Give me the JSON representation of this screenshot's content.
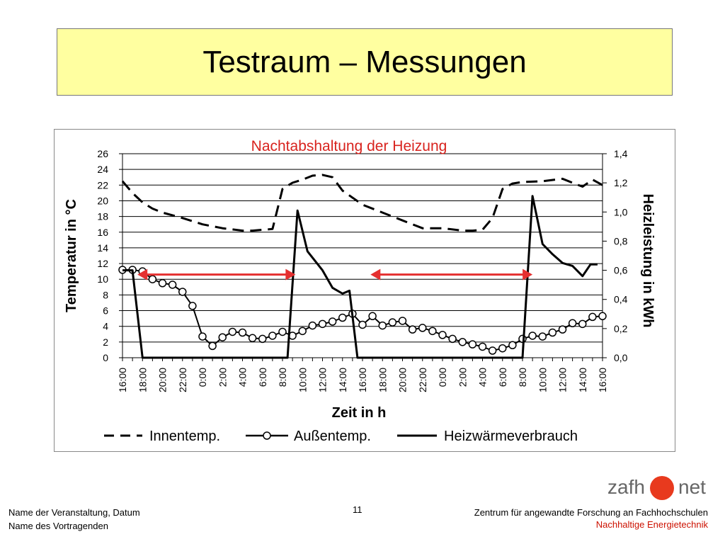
{
  "slide": {
    "title": "Testraum – Messungen",
    "page_number": "11",
    "footer_left_1": "Name der Veranstaltung, Datum",
    "footer_left_2": "Name des Vortragenden",
    "footer_right_1": "Zentrum für angewandte Forschung an Fachhochschulen",
    "footer_right_2": "Nachhaltige Energietechnik",
    "logo_left": "zafh",
    "logo_right": "net",
    "accent_color": "#e83a1e",
    "title_bg": "#ffffa0"
  },
  "chart_data": {
    "type": "line",
    "title": "Nachtabshaltung der Heizung",
    "xlabel": "Zeit in h",
    "ylabel": "Temperatur in °C",
    "y2label": "Heizleistung in kWh",
    "x_ticks": [
      "16:00",
      "18:00",
      "20:00",
      "22:00",
      "0:00",
      "2:00",
      "4:00",
      "6:00",
      "8:00",
      "10:00",
      "12:00",
      "14:00",
      "16:00",
      "18:00",
      "20:00",
      "22:00",
      "0:00",
      "2:00",
      "4:00",
      "6:00",
      "8:00",
      "10:00",
      "12:00",
      "14:00",
      "16:00"
    ],
    "x_hours": [
      0,
      48
    ],
    "ylim": [
      0,
      26
    ],
    "y_ticks": [
      "0",
      "2",
      "4",
      "6",
      "8",
      "10",
      "12",
      "14",
      "16",
      "18",
      "20",
      "22",
      "24",
      "26"
    ],
    "y2lim": [
      0,
      1.4
    ],
    "y2_ticks": [
      "0,0",
      "0,2",
      "0,4",
      "0,6",
      "0,8",
      "1,0",
      "1,2",
      "1,4"
    ],
    "grid": true,
    "legend_position": "bottom",
    "series": [
      {
        "name": "Innentemp.",
        "axis": "left",
        "style": "dashed",
        "x": [
          0,
          1,
          2,
          3,
          4,
          6,
          8,
          10,
          12,
          13,
          14,
          15,
          16,
          17,
          18,
          19,
          20,
          21,
          22,
          24,
          26,
          28,
          30,
          32,
          34,
          35,
          36,
          37,
          38,
          39,
          40,
          42,
          44,
          45,
          46,
          47,
          48
        ],
        "y": [
          22.5,
          21,
          19.8,
          19,
          18.5,
          17.8,
          17,
          16.5,
          16.2,
          16.2,
          16.3,
          16.4,
          21.5,
          22.3,
          22.7,
          23.2,
          23.3,
          23,
          21.3,
          19.5,
          18.5,
          17.5,
          16.5,
          16.5,
          16.2,
          16.2,
          16.3,
          17.8,
          21.5,
          22.2,
          22.4,
          22.5,
          22.8,
          22.3,
          21.8,
          22.7,
          22
        ]
      },
      {
        "name": "Außentemp.",
        "axis": "left",
        "style": "circles",
        "x": [
          0,
          1,
          2,
          3,
          4,
          5,
          6,
          7,
          8,
          9,
          10,
          11,
          12,
          13,
          14,
          15,
          16,
          17,
          18,
          19,
          20,
          21,
          22,
          23,
          24,
          25,
          26,
          27,
          28,
          29,
          30,
          31,
          32,
          33,
          34,
          35,
          36,
          37,
          38,
          39,
          40,
          41,
          42,
          43,
          44,
          45,
          46,
          47,
          48
        ],
        "y": [
          11.2,
          11.2,
          11,
          10,
          9.5,
          9.3,
          8.4,
          6.6,
          2.7,
          1.5,
          2.6,
          3.3,
          3.2,
          2.5,
          2.4,
          2.8,
          3.3,
          2.8,
          3.4,
          4.1,
          4.3,
          4.6,
          5.1,
          5.6,
          4.2,
          5.3,
          4.1,
          4.5,
          4.7,
          3.6,
          3.8,
          3.4,
          2.9,
          2.4,
          2,
          1.7,
          1.4,
          0.9,
          1.2,
          1.6,
          2.4,
          2.8,
          2.7,
          3.2,
          3.6,
          4.4,
          4.3,
          5.2,
          5.3
        ]
      },
      {
        "name": "Heizwärmeverbrauch",
        "axis": "right",
        "style": "solid",
        "x": [
          0,
          1,
          2,
          16.5,
          17.5,
          18.5,
          20,
          21,
          22,
          22.7,
          23.5,
          24.5,
          40,
          41,
          42,
          43,
          44,
          45,
          46,
          46.8,
          47.5
        ],
        "y": [
          0.6,
          0.6,
          0,
          0,
          1.01,
          0.73,
          0.6,
          0.48,
          0.44,
          0.46,
          0,
          0,
          0,
          1.11,
          0.78,
          0.71,
          0.65,
          0.63,
          0.56,
          0.64,
          0.64
        ]
      }
    ],
    "annotations": [
      {
        "type": "double-arrow",
        "color": "#e53030",
        "x_from": 1.5,
        "x_to": 17.3,
        "y": 10.6
      },
      {
        "type": "double-arrow",
        "color": "#e53030",
        "x_from": 24.8,
        "x_to": 41.0,
        "y": 10.6
      }
    ]
  }
}
